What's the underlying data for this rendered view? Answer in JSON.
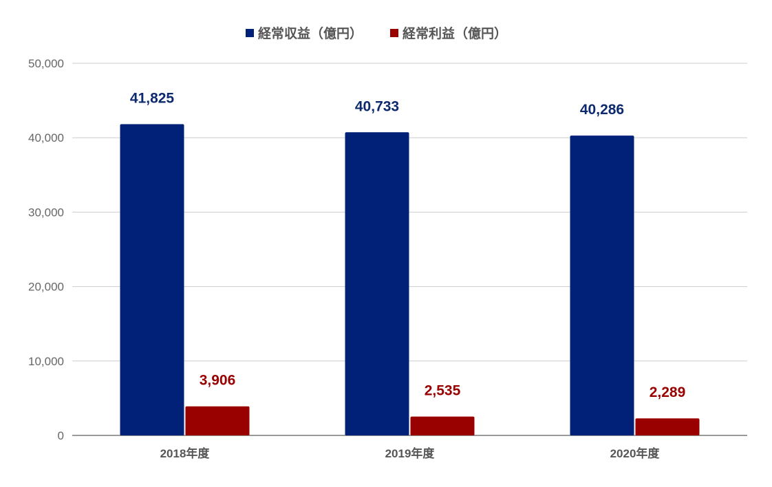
{
  "chart_data": {
    "type": "bar",
    "categories": [
      "2018年度",
      "2019年度",
      "2020年度"
    ],
    "series": [
      {
        "name": "経常収益（億円）",
        "color": "#002177",
        "label_color": "#0d2a6e",
        "values": [
          41825,
          40733,
          40286
        ],
        "labels": [
          "41,825",
          "40,733",
          "40,286"
        ]
      },
      {
        "name": "経常利益（億円）",
        "color": "#990000",
        "label_color": "#990000",
        "values": [
          3906,
          2535,
          2289
        ],
        "labels": [
          "3,906",
          "2,535",
          "2,289"
        ]
      }
    ],
    "ylim": [
      0,
      50000
    ],
    "yticks": [
      0,
      10000,
      20000,
      30000,
      40000,
      50000
    ],
    "ytick_labels": [
      "0",
      "10,000",
      "20,000",
      "30,000",
      "40,000",
      "50,000"
    ],
    "grid": true,
    "legend": "top-center"
  }
}
